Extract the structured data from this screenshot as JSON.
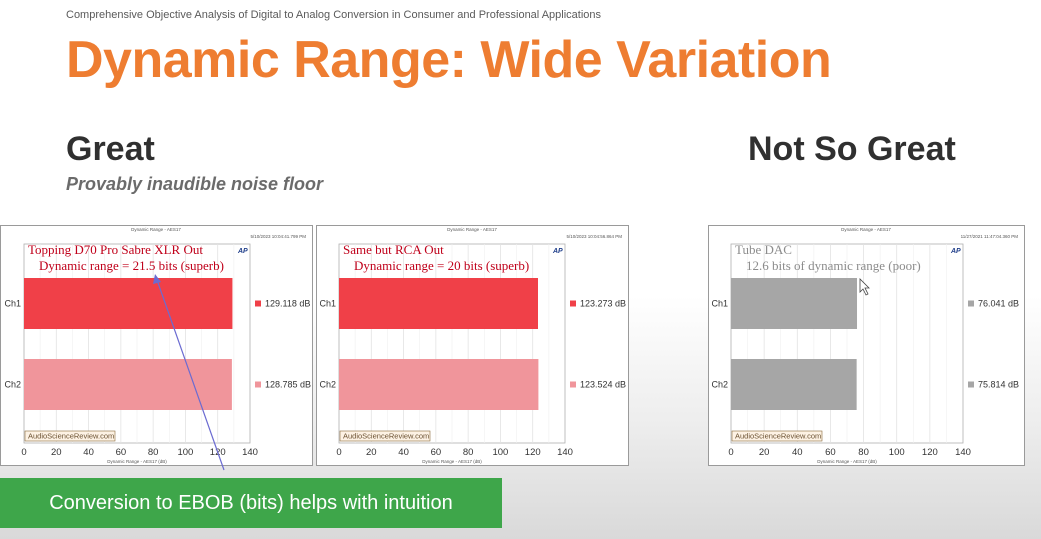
{
  "header": {
    "subtitle": "Comprehensive Objective Analysis of Digital to Analog Conversion in Consumer and Professional Applications",
    "title": "Dynamic Range: Wide Variation"
  },
  "sections": {
    "great": {
      "heading": "Great",
      "subheading": "Provably inaudible noise floor"
    },
    "not_so_great": {
      "heading": "Not So Great"
    }
  },
  "banner": {
    "text": "Conversion to EBOB (bits) helps with intuition"
  },
  "colors": {
    "title": "#ee7d31",
    "banner": "#3ea64a",
    "annotation": "#c0001a",
    "annotation_gray": "#8c8c8c"
  },
  "chart_data": [
    {
      "type": "bar",
      "orientation": "horizontal",
      "top_title": "Dynamic Range - AES17",
      "timestamp": "5/10/2023 10:04:41.799 PM",
      "annotation_lines": [
        "Topping D70 Pro Sabre XLR Out",
        "Dynamic range = 21.5 bits (superb)"
      ],
      "annotation_color": "#c0001a",
      "categories": [
        "Ch1",
        "Ch2"
      ],
      "values": [
        129.118,
        128.785
      ],
      "value_labels": [
        "129.118  dB",
        "128.785  dB"
      ],
      "colors": [
        "#f04048",
        "#f0959b"
      ],
      "xlim": [
        0,
        140
      ],
      "xticks": [
        0,
        20,
        40,
        60,
        80,
        100,
        120,
        140
      ],
      "xlabel": "Dynamic Range - AES17 (dB)",
      "watermark": "AudioScienceReview.com",
      "badge": "AP"
    },
    {
      "type": "bar",
      "orientation": "horizontal",
      "top_title": "Dynamic Range - AES17",
      "timestamp": "5/10/2023 10:04:56.864 PM",
      "annotation_lines": [
        "Same but RCA Out",
        "Dynamic range = 20 bits (superb)"
      ],
      "annotation_color": "#c0001a",
      "categories": [
        "Ch1",
        "Ch2"
      ],
      "values": [
        123.273,
        123.524
      ],
      "value_labels": [
        "123.273  dB",
        "123.524  dB"
      ],
      "colors": [
        "#f04048",
        "#f0959b"
      ],
      "xlim": [
        0,
        140
      ],
      "xticks": [
        0,
        20,
        40,
        60,
        80,
        100,
        120,
        140
      ],
      "xlabel": "Dynamic Range - AES17 (dB)",
      "watermark": "AudioScienceReview.com",
      "badge": "AP"
    },
    {
      "type": "bar",
      "orientation": "horizontal",
      "top_title": "Dynamic Range - AES17",
      "timestamp": "11/27/2021 11:47:04.360 PM",
      "annotation_lines": [
        "Tube DAC",
        "12.6 bits of dynamic range (poor)"
      ],
      "annotation_color": "#8c8c8c",
      "categories": [
        "Ch1",
        "Ch2"
      ],
      "values": [
        76.041,
        75.814
      ],
      "value_labels": [
        "76.041  dB",
        "75.814  dB"
      ],
      "colors": [
        "#a6a6a6",
        "#a6a6a6"
      ],
      "xlim": [
        0,
        140
      ],
      "xticks": [
        0,
        20,
        40,
        60,
        80,
        100,
        120,
        140
      ],
      "xlabel": "Dynamic Range - AES17 (dB)",
      "watermark": "AudioScienceReview.com",
      "badge": "AP"
    }
  ]
}
